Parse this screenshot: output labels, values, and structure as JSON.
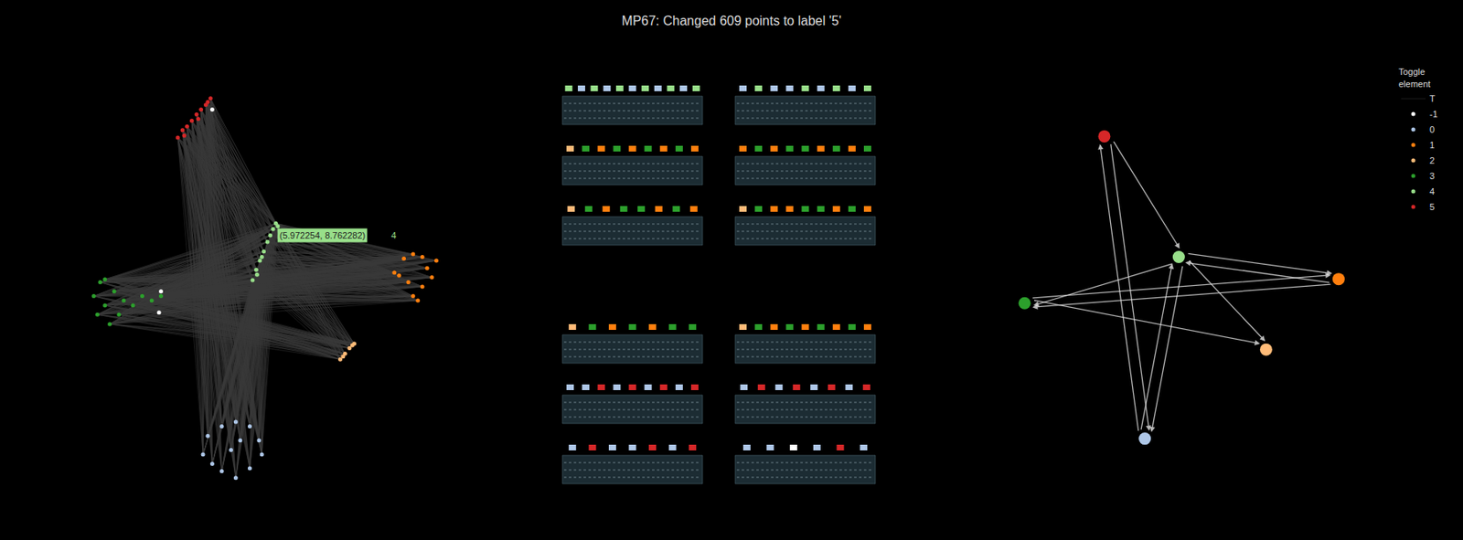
{
  "chart_data": {
    "type": "scatter",
    "title": "MP67: Changed 609 points to label '5'",
    "xlim": [
      -1,
      12.5
    ],
    "ylim": [
      -0.5,
      14.5
    ],
    "tick_labels": false,
    "legend": "right",
    "legend_title": "Toggle element",
    "transitions": {
      "name": "T",
      "color": "#ffffff",
      "edges": [
        [
          0,
          5
        ],
        [
          5,
          0
        ],
        [
          0,
          4
        ],
        [
          4,
          0
        ],
        [
          1,
          3
        ],
        [
          3,
          1
        ],
        [
          4,
          1
        ],
        [
          1,
          4
        ],
        [
          4,
          2
        ],
        [
          3,
          2
        ],
        [
          4,
          3
        ],
        [
          5,
          4
        ]
      ]
    },
    "series": [
      {
        "name": "-1",
        "color": "#ffffff",
        "x": [
          2.07,
          2.0,
          3.9
        ],
        "y": [
          6.76,
          6.0,
          13.26
        ]
      },
      {
        "name": "0",
        "color": "#aec7e8",
        "x": [
          3.57,
          3.74,
          4.24,
          4.74,
          5.24,
          5.57,
          5.67,
          5.24,
          4.74,
          4.24,
          3.9,
          4.57,
          4.9
        ],
        "y": [
          0.93,
          1.59,
          1.93,
          2.09,
          1.93,
          1.43,
          0.93,
          0.43,
          0.09,
          0.33,
          0.59,
          1.09,
          1.43
        ]
      },
      {
        "name": "1",
        "color": "#ff7f0e",
        "x": [
          10.4,
          10.74,
          11.07,
          11.4,
          11.9,
          11.74,
          11.4,
          11.07,
          10.9,
          10.57,
          11.57,
          11.24
        ],
        "y": [
          7.43,
          7.93,
          8.09,
          7.99,
          7.86,
          7.26,
          6.93,
          6.59,
          7.09,
          7.33,
          7.59,
          6.43
        ]
      },
      {
        "name": "2",
        "color": "#ffbb78",
        "x": [
          8.47,
          8.64,
          8.8,
          8.97,
          8.57,
          8.9
        ],
        "y": [
          4.33,
          4.53,
          4.73,
          4.89,
          4.43,
          4.83
        ]
      },
      {
        "name": "3",
        "color": "#2ca02c",
        "x": [
          -0.33,
          -0.1,
          0.07,
          0.24,
          0.57,
          0.4,
          0.74,
          1.07,
          1.4,
          1.74,
          2.07,
          -0.2,
          0.07
        ],
        "y": [
          6.59,
          7.09,
          6.26,
          5.59,
          5.93,
          6.76,
          6.43,
          6.26,
          6.59,
          6.43,
          6.59,
          5.93,
          7.19
        ]
      },
      {
        "name": "4",
        "color": "#98df8a",
        "x": [
          5.34,
          5.47,
          5.6,
          5.74,
          5.87,
          5.972254,
          6.07,
          6.17,
          5.67,
          5.5,
          6.24
        ],
        "y": [
          7.16,
          7.53,
          7.86,
          8.19,
          8.53,
          8.762282,
          8.99,
          9.19,
          7.99,
          7.36,
          9.09
        ]
      },
      {
        "name": "5",
        "color": "#d62728",
        "x": [
          2.67,
          2.84,
          3.0,
          3.17,
          3.34,
          3.5,
          3.67,
          3.84,
          2.9,
          3.4,
          3.74
        ],
        "y": [
          12.26,
          12.53,
          12.66,
          12.86,
          13.09,
          13.26,
          13.43,
          13.66,
          12.33,
          12.93,
          13.53
        ]
      }
    ],
    "annotations": [
      {
        "x": 5.972254,
        "y": 8.762282,
        "text": "(5.972254, 8.762282)",
        "label": "4"
      }
    ],
    "spectrogram_groups": [
      [
        [
          [
            4,
            0,
            4,
            0,
            4,
            0,
            4,
            0,
            4,
            0,
            4
          ],
          [
            0,
            4,
            0,
            0,
            4,
            0,
            4,
            0,
            4
          ]
        ],
        [
          [
            2,
            3,
            1,
            3,
            1,
            3,
            1,
            3,
            1
          ],
          [
            1,
            3,
            1,
            3,
            3,
            1,
            3,
            1,
            3
          ]
        ],
        [
          [
            2,
            3,
            1,
            3,
            3,
            1,
            3,
            1
          ],
          [
            2,
            3,
            1,
            1,
            3,
            3,
            1,
            3,
            1
          ]
        ]
      ],
      [
        [
          [
            2,
            3,
            1,
            3,
            1,
            3,
            3
          ],
          [
            2,
            3,
            1,
            3,
            1,
            3,
            1,
            3,
            1
          ]
        ],
        [
          [
            0,
            0,
            5,
            0,
            5,
            0,
            5,
            0,
            5
          ],
          [
            0,
            5,
            0,
            5,
            0,
            5,
            0,
            5
          ]
        ],
        [
          [
            0,
            5,
            0,
            0,
            5,
            0,
            5
          ],
          [
            0,
            0,
            -1,
            0,
            5,
            0
          ]
        ]
      ]
    ]
  }
}
